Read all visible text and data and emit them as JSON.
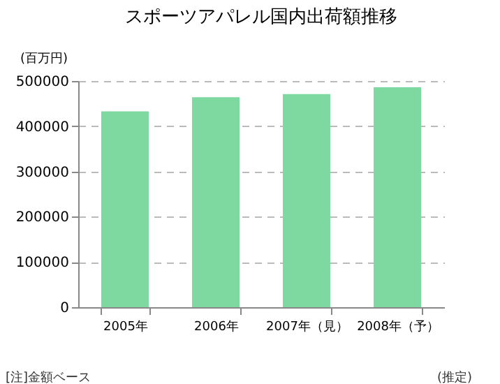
{
  "chart_data": {
    "type": "bar",
    "title": "スポーツアパレル国内出荷額推移",
    "ylabel": "(百万円)",
    "categories": [
      "2005年",
      "2006年",
      "2007年（見）",
      "2008年（予）"
    ],
    "values": [
      433000,
      464000,
      471000,
      486000
    ],
    "color": "#7ed9a0",
    "ylim": [
      0,
      500000
    ],
    "yticks": [
      0,
      100000,
      200000,
      300000,
      400000,
      500000
    ],
    "grid": "y",
    "annotations": [
      "[注]金額ベース",
      "(推定)"
    ]
  }
}
